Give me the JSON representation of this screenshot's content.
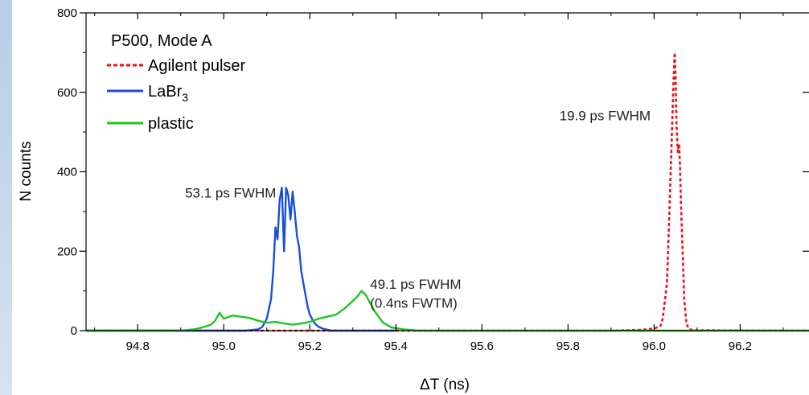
{
  "chart_data": {
    "type": "line",
    "title": "",
    "xlabel": "ΔT (ns)",
    "ylabel": "N counts",
    "xlim": [
      94.68,
      96.36
    ],
    "ylim": [
      0,
      800
    ],
    "xticks": [
      94.8,
      95.0,
      95.2,
      95.4,
      95.6,
      95.8,
      96.0,
      96.2
    ],
    "xtick_labels": [
      "94.8",
      "95.0",
      "95.2",
      "95.4",
      "95.6",
      "95.8",
      "96.0",
      "96.2"
    ],
    "yticks": [
      0,
      200,
      400,
      600,
      800
    ],
    "ytick_labels": [
      "0",
      "200",
      "400",
      "600",
      "800"
    ],
    "grid": false,
    "legend": {
      "placement": "top-left",
      "header": "P500, Mode A",
      "entries": [
        {
          "label": "Agilent pulser",
          "style": "dashed",
          "color": "#e8141a"
        },
        {
          "label_main": "LaBr",
          "label_sub": "3",
          "style": "solid",
          "color": "#1a4fd8"
        },
        {
          "label": "plastic",
          "style": "solid",
          "color": "#1fc41f"
        }
      ]
    },
    "annotations": [
      {
        "text": "19.9 ps FWHM",
        "x": 95.78,
        "y": 530
      },
      {
        "text": "53.1 ps FWHM",
        "x": 94.91,
        "y": 335
      },
      {
        "text": "49.1 ps FWHM",
        "x": 95.34,
        "y": 105
      },
      {
        "text": "(0.4ns FWTM)",
        "x": 95.34,
        "y": 58
      }
    ],
    "series": [
      {
        "name": "Agilent pulser",
        "color": "#e8141a",
        "style": "dashed",
        "x": [
          94.68,
          95.08,
          95.1,
          95.2,
          95.22,
          95.9,
          95.97,
          96.0,
          96.015,
          96.02,
          96.03,
          96.035,
          96.04,
          96.045,
          96.048,
          96.05,
          96.052,
          96.055,
          96.058,
          96.06,
          96.063,
          96.067,
          96.07,
          96.075,
          96.08,
          96.09,
          96.36
        ],
        "y": [
          0,
          0,
          0,
          0,
          0,
          0,
          2,
          5,
          12,
          30,
          120,
          280,
          450,
          620,
          700,
          640,
          520,
          450,
          470,
          420,
          300,
          180,
          80,
          20,
          5,
          1,
          0
        ]
      },
      {
        "name": "LaBr3",
        "color": "#1a4fd8",
        "style": "solid",
        "x": [
          94.68,
          95.05,
          95.08,
          95.09,
          95.1,
          95.11,
          95.115,
          95.12,
          95.125,
          95.13,
          95.135,
          95.14,
          95.145,
          95.15,
          95.155,
          95.16,
          95.165,
          95.17,
          95.175,
          95.18,
          95.185,
          95.19,
          95.195,
          95.2,
          95.21,
          95.22,
          95.23,
          95.25,
          95.4
        ],
        "y": [
          0,
          0,
          3,
          10,
          30,
          80,
          150,
          260,
          230,
          330,
          360,
          200,
          360,
          340,
          280,
          350,
          300,
          240,
          210,
          150,
          120,
          90,
          60,
          40,
          20,
          10,
          5,
          0,
          0
        ]
      },
      {
        "name": "plastic",
        "color": "#1fc41f",
        "style": "solid",
        "x": [
          94.68,
          94.9,
          94.93,
          94.95,
          94.97,
          94.98,
          94.99,
          95.0,
          95.02,
          95.04,
          95.06,
          95.08,
          95.1,
          95.12,
          95.14,
          95.16,
          95.18,
          95.2,
          95.22,
          95.24,
          95.26,
          95.28,
          95.3,
          95.31,
          95.32,
          95.33,
          95.34,
          95.35,
          95.37,
          95.39,
          95.42,
          95.45,
          96.36
        ],
        "y": [
          0,
          0,
          3,
          8,
          15,
          25,
          45,
          30,
          38,
          35,
          32,
          25,
          20,
          22,
          18,
          15,
          18,
          22,
          30,
          35,
          40,
          55,
          75,
          85,
          100,
          90,
          70,
          50,
          20,
          8,
          3,
          0,
          0
        ]
      }
    ]
  }
}
